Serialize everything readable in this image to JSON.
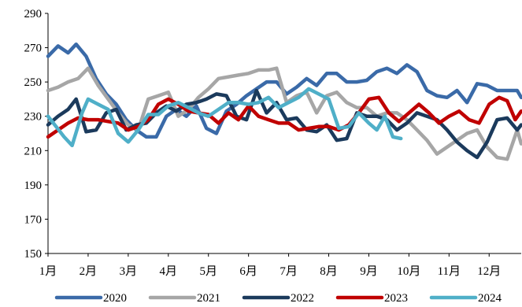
{
  "chart_data": {
    "type": "line",
    "title": "",
    "xlabel": "",
    "ylabel": "",
    "ylim": [
      150,
      290
    ],
    "yticks": [
      150,
      170,
      190,
      210,
      230,
      250,
      270,
      290
    ],
    "xlim": [
      1,
      12.8
    ],
    "xticks": [
      {
        "value": 1,
        "label": "1月"
      },
      {
        "value": 2,
        "label": "2月"
      },
      {
        "value": 3,
        "label": "3月"
      },
      {
        "value": 4,
        "label": "4月"
      },
      {
        "value": 5,
        "label": "5月"
      },
      {
        "value": 6,
        "label": "6月"
      },
      {
        "value": 7,
        "label": "7月"
      },
      {
        "value": 8,
        "label": "8月"
      },
      {
        "value": 9,
        "label": "9月"
      },
      {
        "value": 10,
        "label": "10月"
      },
      {
        "value": 11,
        "label": "11月"
      },
      {
        "value": 12,
        "label": "12月"
      }
    ],
    "grid": false,
    "legend": "bottom",
    "series": [
      {
        "name": "2020",
        "color": "#3A6AA8",
        "points": [
          [
            1,
            265
          ],
          [
            1.25,
            271
          ],
          [
            1.5,
            267
          ],
          [
            1.7,
            272
          ],
          [
            1.95,
            265
          ],
          [
            2.2,
            252
          ],
          [
            2.45,
            243
          ],
          [
            2.7,
            237
          ],
          [
            2.95,
            228
          ],
          [
            3.2,
            222
          ],
          [
            3.45,
            218
          ],
          [
            3.7,
            218
          ],
          [
            3.95,
            230
          ],
          [
            4.2,
            234
          ],
          [
            4.45,
            230
          ],
          [
            4.7,
            236
          ],
          [
            4.95,
            223
          ],
          [
            5.2,
            220
          ],
          [
            5.45,
            233
          ],
          [
            5.7,
            237
          ],
          [
            5.95,
            242
          ],
          [
            6.2,
            246
          ],
          [
            6.45,
            250
          ],
          [
            6.7,
            250
          ],
          [
            6.95,
            243
          ],
          [
            7.2,
            247
          ],
          [
            7.45,
            252
          ],
          [
            7.7,
            248
          ],
          [
            7.95,
            255
          ],
          [
            8.2,
            255
          ],
          [
            8.45,
            250
          ],
          [
            8.7,
            250
          ],
          [
            8.95,
            251
          ],
          [
            9.2,
            256
          ],
          [
            9.45,
            258
          ],
          [
            9.7,
            255
          ],
          [
            9.95,
            260
          ],
          [
            10.2,
            256
          ],
          [
            10.45,
            245
          ],
          [
            10.7,
            242
          ],
          [
            10.95,
            241
          ],
          [
            11.2,
            245
          ],
          [
            11.45,
            238
          ],
          [
            11.7,
            249
          ],
          [
            11.95,
            248
          ],
          [
            12.2,
            245
          ],
          [
            12.45,
            245
          ],
          [
            12.7,
            245
          ],
          [
            12.8,
            241
          ]
        ]
      },
      {
        "name": "2021",
        "color": "#A6A6A6",
        "points": [
          [
            1,
            245
          ],
          [
            1.25,
            247
          ],
          [
            1.5,
            250
          ],
          [
            1.75,
            252
          ],
          [
            2,
            258
          ],
          [
            2.25,
            248
          ],
          [
            2.5,
            240
          ],
          [
            2.75,
            232
          ],
          [
            3,
            225
          ],
          [
            3.25,
            222
          ],
          [
            3.5,
            240
          ],
          [
            3.75,
            242
          ],
          [
            4,
            244
          ],
          [
            4.25,
            230
          ],
          [
            4.5,
            234
          ],
          [
            4.75,
            241
          ],
          [
            5,
            246
          ],
          [
            5.25,
            252
          ],
          [
            5.5,
            253
          ],
          [
            5.75,
            254
          ],
          [
            6,
            255
          ],
          [
            6.25,
            257
          ],
          [
            6.5,
            257
          ],
          [
            6.7,
            258
          ],
          [
            6.95,
            238
          ],
          [
            7.2,
            242
          ],
          [
            7.45,
            244
          ],
          [
            7.7,
            232
          ],
          [
            7.95,
            242
          ],
          [
            8.2,
            244
          ],
          [
            8.45,
            238
          ],
          [
            8.7,
            235
          ],
          [
            8.95,
            235
          ],
          [
            9.2,
            230
          ],
          [
            9.45,
            232
          ],
          [
            9.7,
            232
          ],
          [
            9.95,
            228
          ],
          [
            10.2,
            222
          ],
          [
            10.45,
            216
          ],
          [
            10.7,
            208
          ],
          [
            10.95,
            212
          ],
          [
            11.2,
            216
          ],
          [
            11.45,
            220
          ],
          [
            11.7,
            222
          ],
          [
            11.95,
            212
          ],
          [
            12.2,
            206
          ],
          [
            12.45,
            205
          ],
          [
            12.7,
            222
          ],
          [
            12.8,
            214
          ]
        ]
      },
      {
        "name": "2022",
        "color": "#1B3A5C",
        "points": [
          [
            1,
            225
          ],
          [
            1.25,
            230
          ],
          [
            1.5,
            234
          ],
          [
            1.7,
            240
          ],
          [
            1.95,
            221
          ],
          [
            2.2,
            222
          ],
          [
            2.45,
            232
          ],
          [
            2.7,
            234
          ],
          [
            2.95,
            222
          ],
          [
            3.2,
            225
          ],
          [
            3.45,
            226
          ],
          [
            3.7,
            232
          ],
          [
            3.95,
            236
          ],
          [
            4.2,
            233
          ],
          [
            4.45,
            237
          ],
          [
            4.7,
            238
          ],
          [
            4.95,
            240
          ],
          [
            5.2,
            243
          ],
          [
            5.45,
            242
          ],
          [
            5.7,
            230
          ],
          [
            5.95,
            228
          ],
          [
            6.2,
            245
          ],
          [
            6.45,
            232
          ],
          [
            6.7,
            238
          ],
          [
            6.95,
            228
          ],
          [
            7.2,
            229
          ],
          [
            7.45,
            222
          ],
          [
            7.7,
            221
          ],
          [
            7.95,
            225
          ],
          [
            8.2,
            216
          ],
          [
            8.45,
            217
          ],
          [
            8.7,
            232
          ],
          [
            8.95,
            230
          ],
          [
            9.2,
            230
          ],
          [
            9.45,
            228
          ],
          [
            9.7,
            222
          ],
          [
            9.95,
            226
          ],
          [
            10.2,
            232
          ],
          [
            10.45,
            230
          ],
          [
            10.7,
            228
          ],
          [
            10.95,
            222
          ],
          [
            11.2,
            215
          ],
          [
            11.45,
            210
          ],
          [
            11.7,
            206
          ],
          [
            11.95,
            215
          ],
          [
            12.2,
            228
          ],
          [
            12.45,
            229
          ],
          [
            12.7,
            222
          ],
          [
            12.8,
            225
          ]
        ]
      },
      {
        "name": "2023",
        "color": "#C00000",
        "points": [
          [
            1,
            218
          ],
          [
            1.25,
            222
          ],
          [
            1.5,
            226
          ],
          [
            1.75,
            229
          ],
          [
            2,
            228
          ],
          [
            2.25,
            228
          ],
          [
            2.5,
            227
          ],
          [
            2.75,
            226
          ],
          [
            3,
            222
          ],
          [
            3.25,
            224
          ],
          [
            3.5,
            228
          ],
          [
            3.75,
            237
          ],
          [
            4,
            240
          ],
          [
            4.25,
            237
          ],
          [
            4.5,
            233
          ],
          [
            4.75,
            232
          ],
          [
            5,
            231
          ],
          [
            5.25,
            226
          ],
          [
            5.5,
            232
          ],
          [
            5.75,
            228
          ],
          [
            6,
            236
          ],
          [
            6.25,
            230
          ],
          [
            6.5,
            228
          ],
          [
            6.75,
            226
          ],
          [
            7,
            226
          ],
          [
            7.25,
            222
          ],
          [
            7.5,
            223
          ],
          [
            7.75,
            224
          ],
          [
            8,
            224
          ],
          [
            8.25,
            222
          ],
          [
            8.5,
            225
          ],
          [
            8.75,
            232
          ],
          [
            9,
            240
          ],
          [
            9.25,
            241
          ],
          [
            9.5,
            232
          ],
          [
            9.75,
            227
          ],
          [
            10,
            232
          ],
          [
            10.25,
            237
          ],
          [
            10.5,
            232
          ],
          [
            10.75,
            226
          ],
          [
            11,
            230
          ],
          [
            11.25,
            233
          ],
          [
            11.5,
            228
          ],
          [
            11.75,
            226
          ],
          [
            12,
            237
          ],
          [
            12.25,
            241
          ],
          [
            12.45,
            239
          ],
          [
            12.65,
            228
          ],
          [
            12.8,
            233
          ]
        ]
      },
      {
        "name": "2024",
        "color": "#4FAFC8",
        "points": [
          [
            1,
            230
          ],
          [
            1.2,
            224
          ],
          [
            1.4,
            218
          ],
          [
            1.6,
            213
          ],
          [
            1.85,
            232
          ],
          [
            2,
            240
          ],
          [
            2.25,
            237
          ],
          [
            2.5,
            234
          ],
          [
            2.75,
            220
          ],
          [
            3,
            215
          ],
          [
            3.25,
            222
          ],
          [
            3.5,
            231
          ],
          [
            3.75,
            231
          ],
          [
            4,
            236
          ],
          [
            4.25,
            238
          ],
          [
            4.5,
            235
          ],
          [
            4.75,
            232
          ],
          [
            5,
            230
          ],
          [
            5.25,
            234
          ],
          [
            5.5,
            238
          ],
          [
            5.75,
            238
          ],
          [
            6,
            237
          ],
          [
            6.25,
            238
          ],
          [
            6.5,
            241
          ],
          [
            6.75,
            235
          ],
          [
            7,
            238
          ],
          [
            7.25,
            241
          ],
          [
            7.5,
            246
          ],
          [
            7.75,
            243
          ],
          [
            8,
            240
          ],
          [
            8.25,
            223
          ],
          [
            8.5,
            224
          ],
          [
            8.75,
            232
          ],
          [
            9,
            226
          ],
          [
            9.2,
            222
          ],
          [
            9.4,
            230
          ],
          [
            9.6,
            218
          ],
          [
            9.8,
            217
          ]
        ]
      }
    ]
  }
}
